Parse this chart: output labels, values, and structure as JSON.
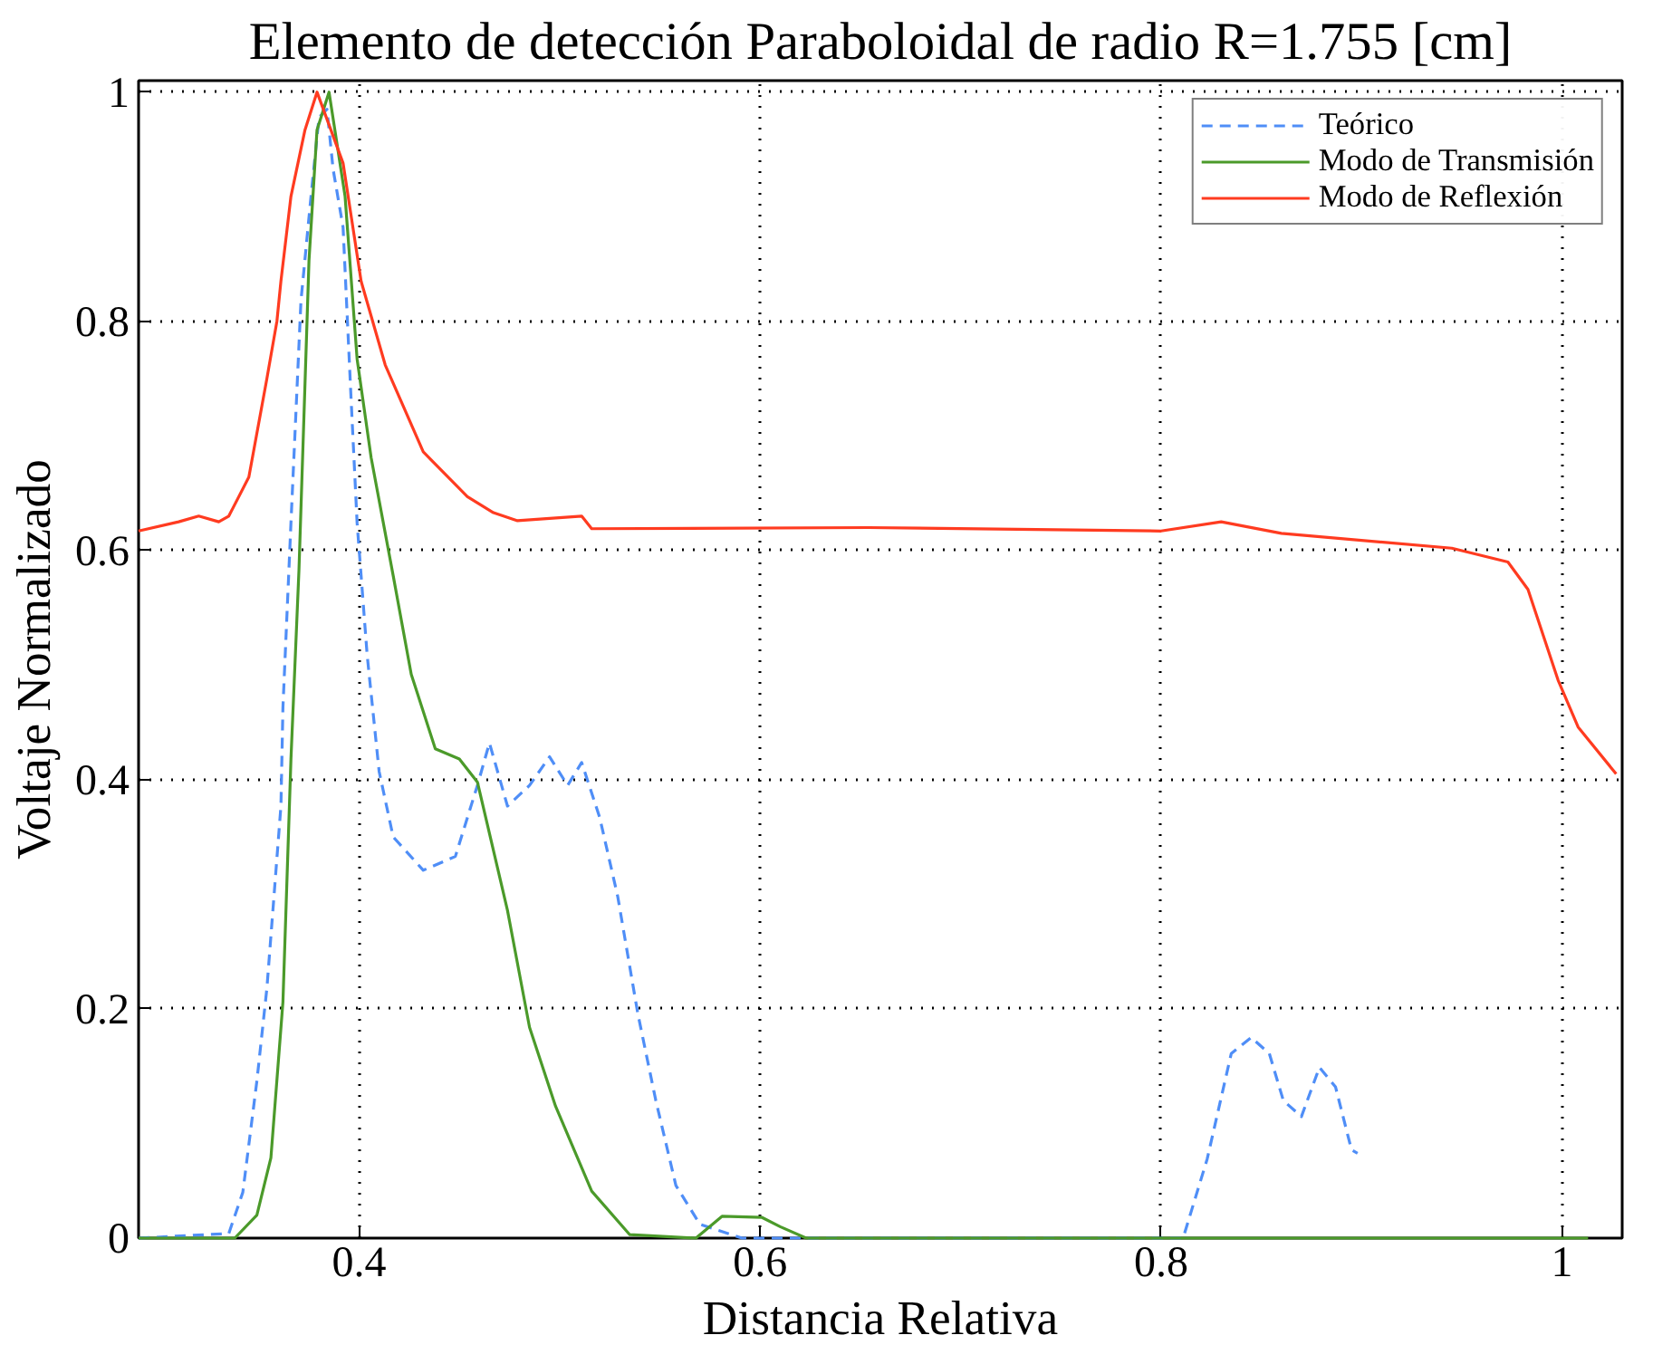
{
  "chart_data": {
    "type": "line",
    "title": "Elemento de detección Paraboloidal de radio R=1.755 [cm]",
    "xlabel": "Distancia Relativa",
    "ylabel": "Voltaje Normalizado",
    "xlim": [
      0.29,
      1.03
    ],
    "ylim": [
      0,
      1.01
    ],
    "xticks": [
      0.4,
      0.6,
      0.8,
      1
    ],
    "yticks": [
      0,
      0.2,
      0.4,
      0.6,
      0.8,
      1
    ],
    "grid": true,
    "legend": "top right",
    "series": [
      {
        "name": "Teórico",
        "color": "#4f8ef7",
        "line_style": "dashed",
        "x": [
          0.29,
          0.335,
          0.342,
          0.349,
          0.354,
          0.361,
          0.362,
          0.366,
          0.371,
          0.376,
          0.38,
          0.384,
          0.387,
          0.392,
          0.396,
          0.399,
          0.404,
          0.41,
          0.417,
          0.432,
          0.448,
          0.459,
          0.465,
          0.474,
          0.485,
          0.495,
          0.504,
          0.511,
          0.52,
          0.529,
          0.539,
          0.548,
          0.558,
          0.57,
          0.591,
          0.811,
          0.823,
          0.835,
          0.845,
          0.854,
          0.861,
          0.87,
          0.879,
          0.887,
          0.895,
          0.898
        ],
        "values": [
          0,
          0.004,
          0.04,
          0.137,
          0.218,
          0.377,
          0.463,
          0.624,
          0.818,
          0.909,
          0.978,
          0.985,
          0.933,
          0.882,
          0.732,
          0.624,
          0.509,
          0.407,
          0.35,
          0.321,
          0.333,
          0.395,
          0.432,
          0.377,
          0.395,
          0.42,
          0.395,
          0.415,
          0.367,
          0.298,
          0.196,
          0.12,
          0.046,
          0.012,
          0,
          0,
          0.069,
          0.161,
          0.175,
          0.161,
          0.12,
          0.106,
          0.149,
          0.132,
          0.077,
          0.074
        ]
      },
      {
        "name": "Modo de Transmisión",
        "color": "#4b9a2a",
        "line_style": "solid",
        "x": [
          0.29,
          0.338,
          0.349,
          0.356,
          0.362,
          0.366,
          0.37,
          0.375,
          0.379,
          0.385,
          0.393,
          0.399,
          0.406,
          0.417,
          0.426,
          0.438,
          0.45,
          0.459,
          0.474,
          0.485,
          0.498,
          0.516,
          0.535,
          0.568,
          0.581,
          0.601,
          0.61,
          0.623,
          1.013
        ],
        "values": [
          0,
          0,
          0.02,
          0.07,
          0.206,
          0.418,
          0.583,
          0.853,
          0.967,
          1.0,
          0.909,
          0.767,
          0.681,
          0.578,
          0.492,
          0.427,
          0.418,
          0.398,
          0.286,
          0.184,
          0.115,
          0.041,
          0.003,
          0,
          0.019,
          0.018,
          0.01,
          0,
          0
        ]
      },
      {
        "name": "Modo de Reflexión",
        "color": "#ff3b20",
        "line_style": "solid",
        "x": [
          0.29,
          0.31,
          0.32,
          0.33,
          0.335,
          0.345,
          0.354,
          0.359,
          0.361,
          0.366,
          0.373,
          0.379,
          0.392,
          0.401,
          0.413,
          0.432,
          0.454,
          0.467,
          0.479,
          0.511,
          0.516,
          0.654,
          0.8,
          0.83,
          0.86,
          0.945,
          0.973,
          0.983,
          0.998,
          1.008,
          1.027
        ],
        "values": [
          0.617,
          0.625,
          0.63,
          0.625,
          0.63,
          0.664,
          0.75,
          0.8,
          0.835,
          0.909,
          0.967,
          1.0,
          0.938,
          0.835,
          0.762,
          0.686,
          0.647,
          0.633,
          0.626,
          0.63,
          0.619,
          0.62,
          0.617,
          0.625,
          0.615,
          0.602,
          0.59,
          0.566,
          0.487,
          0.446,
          0.405
        ]
      }
    ]
  }
}
